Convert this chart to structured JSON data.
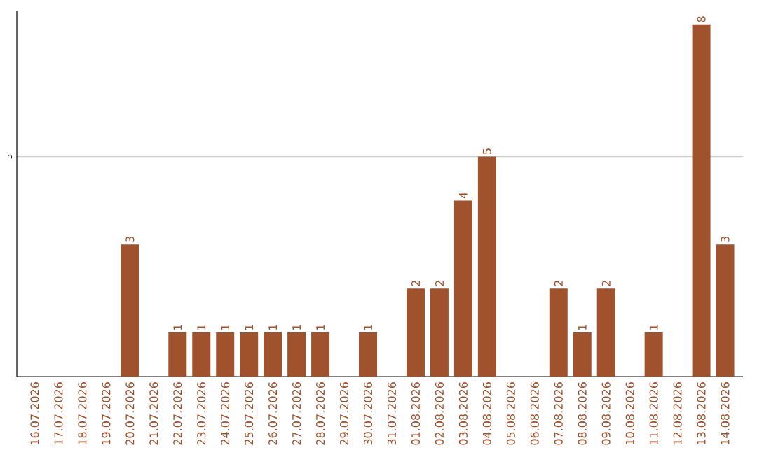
{
  "chart_data": {
    "type": "bar",
    "categories": [
      "16.07.2026",
      "17.07.2026",
      "18.07.2026",
      "19.07.2026",
      "20.07.2026",
      "21.07.2026",
      "22.07.2026",
      "23.07.2026",
      "24.07.2026",
      "25.07.2026",
      "26.07.2026",
      "27.07.2026",
      "28.07.2026",
      "29.07.2026",
      "30.07.2026",
      "31.07.2026",
      "01.08.2026",
      "02.08.2026",
      "03.08.2026",
      "04.08.2026",
      "05.08.2026",
      "06.08.2026",
      "07.08.2026",
      "08.08.2026",
      "09.08.2026",
      "10.08.2026",
      "11.08.2026",
      "12.08.2026",
      "13.08.2026",
      "14.08.2026"
    ],
    "values": [
      0,
      0,
      0,
      0,
      3,
      0,
      1,
      1,
      1,
      1,
      1,
      1,
      1,
      0,
      1,
      0,
      2,
      2,
      4,
      5,
      0,
      0,
      2,
      1,
      2,
      0,
      1,
      0,
      8,
      3
    ],
    "value_labels": [
      null,
      null,
      null,
      null,
      "3",
      null,
      "1",
      "1",
      "1",
      "1",
      "1",
      "1",
      "1",
      null,
      "1",
      null,
      "2",
      "2",
      "4",
      "5",
      null,
      null,
      "2",
      "1",
      "2",
      null,
      "1",
      null,
      "8",
      "3"
    ],
    "color": "#a0522d",
    "ylim": [
      0,
      8.3
    ],
    "yticks": [
      5
    ],
    "grid": "y"
  }
}
